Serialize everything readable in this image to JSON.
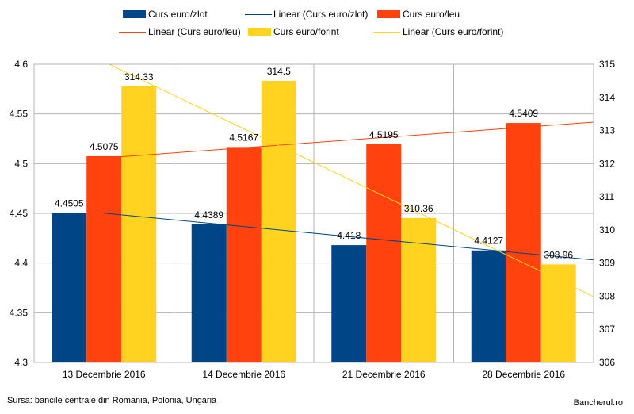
{
  "chart_data": {
    "type": "bar",
    "categories": [
      "13 Decembrie 2016",
      "14 Decembrie 2016",
      "21 Decembrie  2016",
      "28 Decembrie 2016"
    ],
    "series": [
      {
        "name": "Curs euro/zlot",
        "axis": "left",
        "color": "#004586",
        "values": [
          4.4505,
          4.4389,
          4.418,
          4.4127
        ],
        "labels": [
          "4.4505",
          "4.4389",
          "4.418",
          "4.4127"
        ]
      },
      {
        "name": "Curs euro/leu",
        "axis": "left",
        "color": "#ff420e",
        "values": [
          4.5075,
          4.5167,
          4.5195,
          4.5409
        ],
        "labels": [
          "4.5075",
          "4.5167",
          "4.5195",
          "4.5409"
        ]
      },
      {
        "name": "Curs euro/forint",
        "axis": "right",
        "color": "#ffd320",
        "values": [
          314.33,
          314.5,
          310.36,
          308.96
        ],
        "labels": [
          "314.33",
          "314.5",
          "310.36",
          "308.96"
        ]
      }
    ],
    "trendlines": [
      {
        "name": "Linear (Curs euro/zlot)",
        "series": 0,
        "color": "#004586"
      },
      {
        "name": "Linear (Curs euro/leu)",
        "series": 1,
        "color": "#ff420e"
      },
      {
        "name": "Linear (Curs euro/forint)",
        "series": 2,
        "color": "#ffd320"
      }
    ],
    "y_left": {
      "min": 4.3,
      "max": 4.6,
      "ticks": [
        "4.3",
        "4.35",
        "4.4",
        "4.45",
        "4.5",
        "4.55",
        "4.6"
      ]
    },
    "y_right": {
      "min": 306,
      "max": 315,
      "ticks": [
        "306",
        "307",
        "308",
        "309",
        "310",
        "311",
        "312",
        "313",
        "314",
        "315"
      ]
    },
    "grid": true,
    "legend_position": "top"
  },
  "footer": {
    "source": "Sursa: bancile centrale din Romania, Polonia, Ungaria",
    "brand": "Bancherul.ro"
  }
}
